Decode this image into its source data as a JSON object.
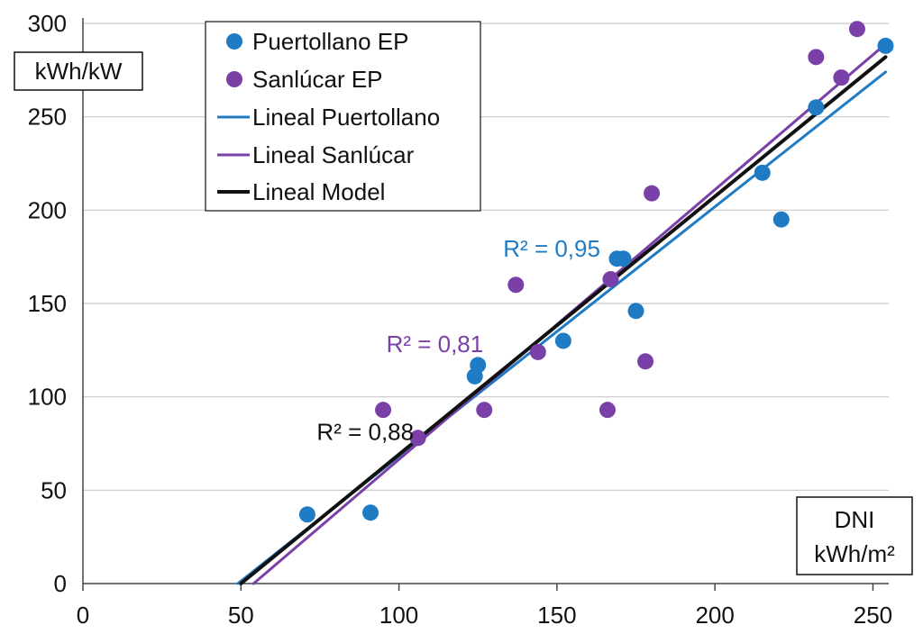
{
  "chart_data": {
    "type": "scatter",
    "title": "",
    "xlabel": "DNI kWh/m²",
    "ylabel": "kWh/kW",
    "xlabel_lines": [
      "DNI",
      "kWh/m²"
    ],
    "xlim": [
      0,
      255
    ],
    "ylim": [
      0,
      300
    ],
    "xticks": [
      0,
      50,
      100,
      150,
      200,
      250
    ],
    "yticks": [
      0,
      50,
      100,
      150,
      200,
      250,
      300
    ],
    "grid": "horizontal",
    "legend_position": "top-left",
    "series": [
      {
        "name": "Puertollano EP",
        "kind": "scatter",
        "color": "#1f7cc4",
        "points": [
          [
            71,
            37
          ],
          [
            91,
            38
          ],
          [
            124,
            111
          ],
          [
            125,
            117
          ],
          [
            152,
            130
          ],
          [
            169,
            174
          ],
          [
            171,
            174
          ],
          [
            175,
            146
          ],
          [
            215,
            220
          ],
          [
            221,
            195
          ],
          [
            232,
            255
          ],
          [
            254,
            288
          ]
        ]
      },
      {
        "name": "Sanlúcar EP",
        "kind": "scatter",
        "color": "#7b3fa8",
        "points": [
          [
            95,
            93
          ],
          [
            106,
            78
          ],
          [
            127,
            93
          ],
          [
            137,
            160
          ],
          [
            144,
            124
          ],
          [
            166,
            93
          ],
          [
            167,
            163
          ],
          [
            178,
            119
          ],
          [
            180,
            209
          ],
          [
            232,
            282
          ],
          [
            240,
            271
          ],
          [
            245,
            297
          ]
        ]
      },
      {
        "name": "Lineal Puertollano",
        "kind": "line",
        "color": "#1f7cc4",
        "x": [
          49,
          254
        ],
        "y": [
          0,
          274
        ]
      },
      {
        "name": "Lineal Sanlúcar",
        "kind": "line",
        "color": "#7b3fa8",
        "x": [
          54,
          254
        ],
        "y": [
          0,
          289
        ]
      },
      {
        "name": "Lineal Model",
        "kind": "line",
        "color": "#111111",
        "x": [
          50,
          254
        ],
        "y": [
          0,
          282
        ]
      }
    ],
    "annotations": [
      {
        "text": "R² = 0,95",
        "color": "#1f7cc4",
        "x": 133,
        "y": 175
      },
      {
        "text": "R² = 0,81",
        "color": "#7b3fa8",
        "x": 96,
        "y": 124
      },
      {
        "text": "R² = 0,88",
        "color": "#111111",
        "x": 74,
        "y": 77
      }
    ]
  }
}
